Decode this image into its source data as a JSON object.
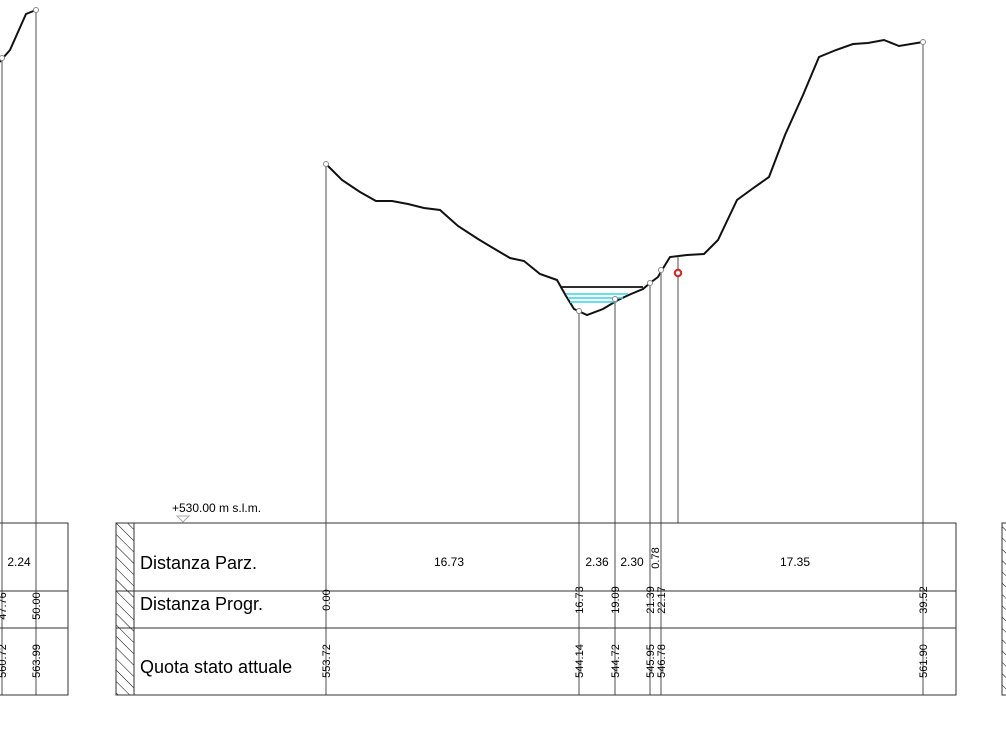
{
  "datum": {
    "label": "+530.00 m s.l.m."
  },
  "table": {
    "row_labels": [
      "Distanza Parz.",
      "Distanza Progr.",
      "Quota stato attuale"
    ]
  },
  "left_section": {
    "partial_distance": "2.24",
    "points": [
      {
        "prog": "47.76",
        "quota": "560.72"
      },
      {
        "prog": "50.00",
        "quota": "563.99"
      }
    ]
  },
  "main_section": {
    "partial_distances": [
      "16.73",
      "2.36",
      "2.30",
      "0.78",
      "17.35"
    ],
    "points": [
      {
        "prog": "0.00",
        "quota": "553.72"
      },
      {
        "prog": "16.73",
        "quota": "544.14"
      },
      {
        "prog": "19.09",
        "quota": "544.72"
      },
      {
        "prog": "21.39",
        "quota": "545.95"
      },
      {
        "prog": "22.17",
        "quota": "546.78"
      },
      {
        "prog": "39.52",
        "quota": "561.90"
      }
    ]
  },
  "colors": {
    "terrain": "#111111",
    "vertical_lines": "#888888",
    "water": "#33d6e8",
    "marker": "#e02020",
    "hatch": "#000000"
  }
}
